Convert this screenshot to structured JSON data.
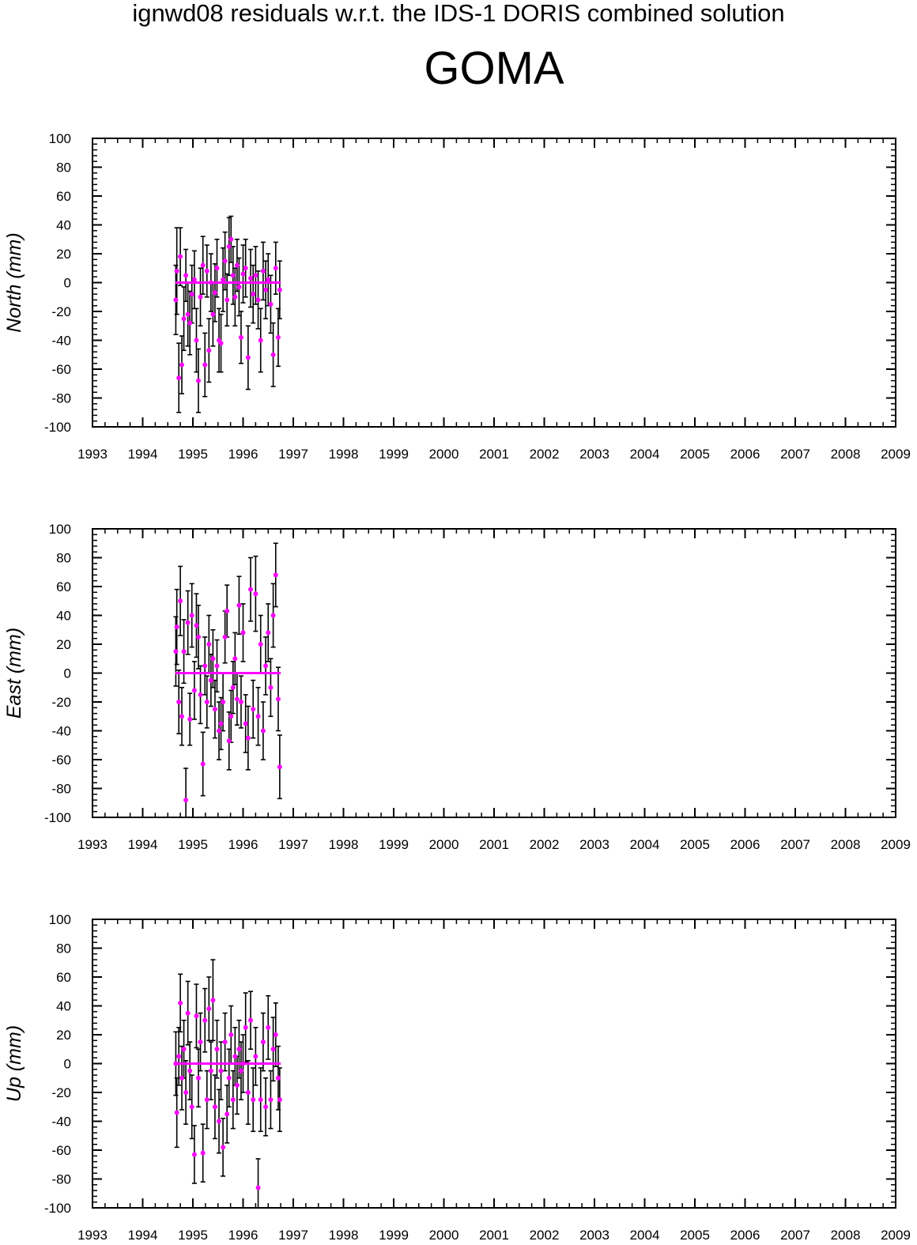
{
  "header": {
    "title": "ignwd08 residuals w.r.t. the IDS-1 DORIS combined solution",
    "station": "GOMA"
  },
  "colors": {
    "points": "#ff00ff",
    "errorbars": "#000000",
    "zero_line": "#ff00ff",
    "axes": "#000000"
  },
  "chart_data": [
    {
      "type": "scatter",
      "ylabel": "North (mm)",
      "xlim": [
        1993,
        2009
      ],
      "ylim": [
        -100,
        100
      ],
      "x_ticks": [
        "1993",
        "1994",
        "1995",
        "1996",
        "1997",
        "1998",
        "1999",
        "2000",
        "2001",
        "2002",
        "2003",
        "2004",
        "2005",
        "2006",
        "2007",
        "2008",
        "2009"
      ],
      "y_ticks": [
        "100",
        "80",
        "60",
        "40",
        "20",
        "0",
        "-20",
        "-40",
        "-60",
        "-80",
        "-100"
      ],
      "zero_line": {
        "x": [
          1994.65,
          1996.75
        ],
        "y": 0
      },
      "series": [
        {
          "x": [
            1994.66,
            1994.68,
            1994.72,
            1994.75,
            1994.78,
            1994.82,
            1994.86,
            1994.9,
            1994.94,
            1994.98,
            1995.03,
            1995.07,
            1995.11,
            1995.15,
            1995.2,
            1995.24,
            1995.28,
            1995.32,
            1995.36,
            1995.4,
            1995.44,
            1995.48,
            1995.52,
            1995.56,
            1995.6,
            1995.64,
            1995.68,
            1995.72,
            1995.76,
            1995.8,
            1995.84,
            1995.88,
            1995.92,
            1995.96,
            1996.0,
            1996.05,
            1996.1,
            1996.15,
            1996.2,
            1996.25,
            1996.3,
            1996.35,
            1996.4,
            1996.45,
            1996.5,
            1996.55,
            1996.6,
            1996.65,
            1996.7,
            1996.73
          ],
          "y": [
            -12,
            8,
            -66,
            18,
            -57,
            -25,
            5,
            -22,
            -28,
            -8,
            2,
            -40,
            -68,
            -10,
            12,
            -57,
            8,
            -47,
            0,
            -22,
            -7,
            10,
            -40,
            -42,
            2,
            15,
            -12,
            25,
            30,
            5,
            -10,
            12,
            -3,
            -38,
            6,
            10,
            -52,
            3,
            -8,
            5,
            -12,
            -40,
            8,
            -5,
            2,
            -15,
            -50,
            10,
            -38,
            -5
          ],
          "err": [
            24,
            30,
            24,
            20,
            20,
            22,
            18,
            22,
            22,
            20,
            20,
            22,
            22,
            20,
            20,
            22,
            18,
            22,
            20,
            22,
            20,
            20,
            22,
            20,
            22,
            20,
            18,
            20,
            16,
            20,
            20,
            18,
            20,
            18,
            20,
            20,
            22,
            20,
            20,
            20,
            20,
            22,
            20,
            20,
            18,
            20,
            22,
            18,
            20,
            20
          ]
        }
      ]
    },
    {
      "type": "scatter",
      "ylabel": "East (mm)",
      "xlim": [
        1993,
        2009
      ],
      "ylim": [
        -100,
        100
      ],
      "x_ticks": [
        "1993",
        "1994",
        "1995",
        "1996",
        "1997",
        "1998",
        "1999",
        "2000",
        "2001",
        "2002",
        "2003",
        "2004",
        "2005",
        "2006",
        "2007",
        "2008",
        "2009"
      ],
      "y_ticks": [
        "100",
        "80",
        "60",
        "40",
        "20",
        "0",
        "-20",
        "-40",
        "-60",
        "-80",
        "-100"
      ],
      "zero_line": {
        "x": [
          1994.65,
          1996.75
        ],
        "y": 0
      },
      "series": [
        {
          "x": [
            1994.66,
            1994.68,
            1994.72,
            1994.75,
            1994.78,
            1994.82,
            1994.86,
            1994.9,
            1994.94,
            1994.98,
            1995.03,
            1995.07,
            1995.11,
            1995.15,
            1995.2,
            1995.24,
            1995.28,
            1995.32,
            1995.36,
            1995.4,
            1995.44,
            1995.48,
            1995.52,
            1995.56,
            1995.6,
            1995.64,
            1995.68,
            1995.72,
            1995.76,
            1995.8,
            1995.84,
            1995.88,
            1995.92,
            1995.96,
            1996.0,
            1996.05,
            1996.1,
            1996.15,
            1996.2,
            1996.25,
            1996.3,
            1996.35,
            1996.4,
            1996.45,
            1996.5,
            1996.55,
            1996.6,
            1996.65,
            1996.7,
            1996.73
          ],
          "y": [
            15,
            32,
            -20,
            50,
            -30,
            15,
            -88,
            35,
            -32,
            40,
            -12,
            33,
            25,
            -15,
            -63,
            5,
            -20,
            20,
            -5,
            10,
            -25,
            5,
            -40,
            -35,
            -20,
            25,
            43,
            -47,
            -30,
            -10,
            10,
            -18,
            47,
            -20,
            28,
            -35,
            -45,
            58,
            -25,
            55,
            -30,
            20,
            -40,
            5,
            28,
            -10,
            40,
            68,
            -18,
            -65
          ],
          "err": [
            24,
            26,
            22,
            24,
            20,
            22,
            22,
            22,
            18,
            22,
            20,
            22,
            22,
            20,
            22,
            20,
            18,
            20,
            18,
            20,
            20,
            18,
            20,
            18,
            20,
            18,
            18,
            20,
            18,
            18,
            18,
            18,
            20,
            18,
            20,
            20,
            22,
            22,
            20,
            26,
            20,
            20,
            20,
            20,
            20,
            20,
            22,
            22,
            22,
            22
          ]
        }
      ]
    },
    {
      "type": "scatter",
      "ylabel": "Up (mm)",
      "xlim": [
        1993,
        2009
      ],
      "ylim": [
        -100,
        100
      ],
      "x_ticks": [
        "1993",
        "1994",
        "1995",
        "1996",
        "1997",
        "1998",
        "1999",
        "2000",
        "2001",
        "2002",
        "2003",
        "2004",
        "2005",
        "2006",
        "2007",
        "2008",
        "2009"
      ],
      "y_ticks": [
        "100",
        "80",
        "60",
        "40",
        "20",
        "0",
        "-20",
        "-40",
        "-60",
        "-80",
        "-100"
      ],
      "zero_line": {
        "x": [
          1994.65,
          1996.75
        ],
        "y": 0
      },
      "series": [
        {
          "x": [
            1994.66,
            1994.68,
            1994.72,
            1994.75,
            1994.78,
            1994.82,
            1994.86,
            1994.9,
            1994.94,
            1994.98,
            1995.03,
            1995.07,
            1995.11,
            1995.15,
            1995.2,
            1995.24,
            1995.28,
            1995.32,
            1995.36,
            1995.4,
            1995.44,
            1995.48,
            1995.52,
            1995.56,
            1995.6,
            1995.64,
            1995.68,
            1995.72,
            1995.76,
            1995.8,
            1995.84,
            1995.88,
            1995.92,
            1995.96,
            1996.0,
            1996.05,
            1996.1,
            1996.15,
            1996.2,
            1996.25,
            1996.3,
            1996.35,
            1996.4,
            1996.45,
            1996.5,
            1996.55,
            1996.6,
            1996.65,
            1996.7,
            1996.73
          ],
          "y": [
            0,
            -34,
            5,
            42,
            -10,
            10,
            -20,
            35,
            -5,
            -30,
            -63,
            33,
            -10,
            15,
            -62,
            30,
            -25,
            38,
            -5,
            44,
            -30,
            10,
            -40,
            -5,
            -58,
            15,
            -35,
            -10,
            20,
            -25,
            5,
            -15,
            10,
            -5,
            0,
            25,
            -20,
            30,
            -25,
            5,
            -86,
            -25,
            15,
            -30,
            25,
            -25,
            10,
            20,
            -10,
            -25
          ],
          "err": [
            22,
            24,
            20,
            20,
            22,
            20,
            22,
            22,
            20,
            22,
            20,
            22,
            20,
            20,
            20,
            22,
            20,
            22,
            20,
            28,
            22,
            20,
            22,
            20,
            20,
            20,
            20,
            20,
            20,
            20,
            20,
            20,
            20,
            20,
            20,
            24,
            22,
            20,
            22,
            20,
            20,
            22,
            20,
            20,
            22,
            20,
            22,
            22,
            22,
            22
          ]
        }
      ]
    }
  ]
}
